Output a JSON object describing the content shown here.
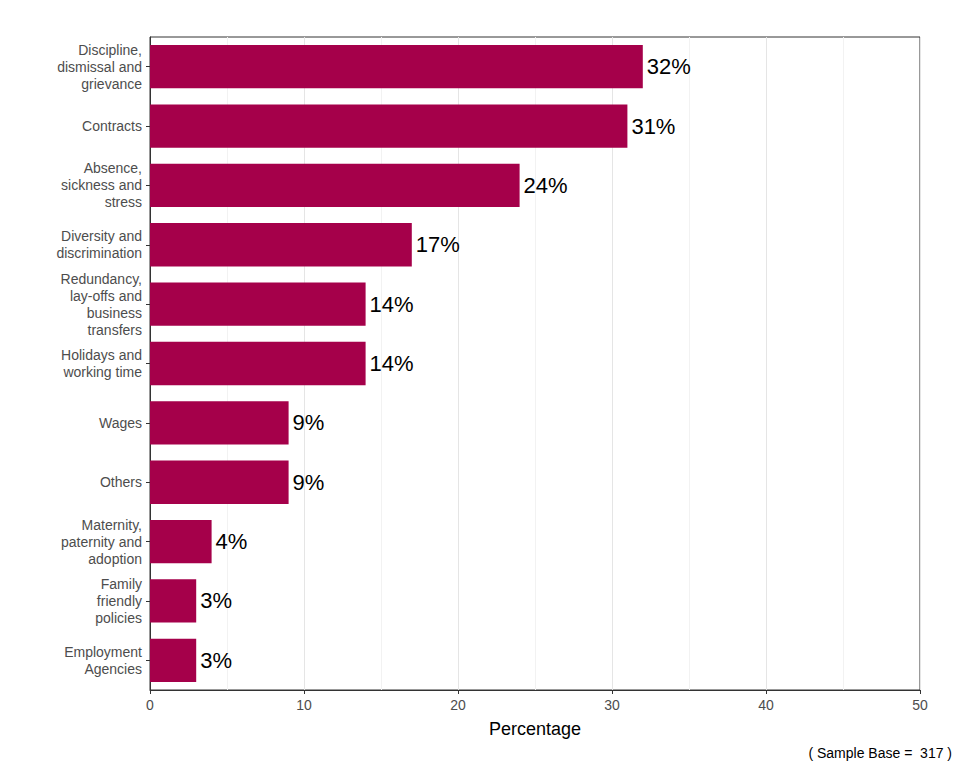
{
  "chart_data": {
    "type": "bar",
    "orientation": "horizontal",
    "categories": [
      "Discipline,\ndismissal and\ngrievance",
      "Contracts",
      "Absence,\nsickness and\nstress",
      "Diversity and\ndiscrimination",
      "Redundancy,\nlay-offs and\nbusiness\ntransfers",
      "Holidays and\nworking time",
      "Wages",
      "Others",
      "Maternity,\npaternity and\nadoption",
      "Family\nfriendly\npolicies",
      "Employment\nAgencies"
    ],
    "values": [
      32,
      31,
      24,
      17,
      14,
      14,
      9,
      9,
      4,
      3,
      3
    ],
    "value_labels": [
      "32%",
      "31%",
      "24%",
      "17%",
      "14%",
      "14%",
      "9%",
      "9%",
      "4%",
      "3%",
      "3%"
    ],
    "data_labels": true,
    "color": "#a5004a",
    "x_label": "Percentage",
    "caption": "( Sample Base =  317 )",
    "xlim": [
      0,
      50
    ],
    "xticks": [
      0,
      10,
      20,
      30,
      40,
      50
    ],
    "grid": true
  }
}
